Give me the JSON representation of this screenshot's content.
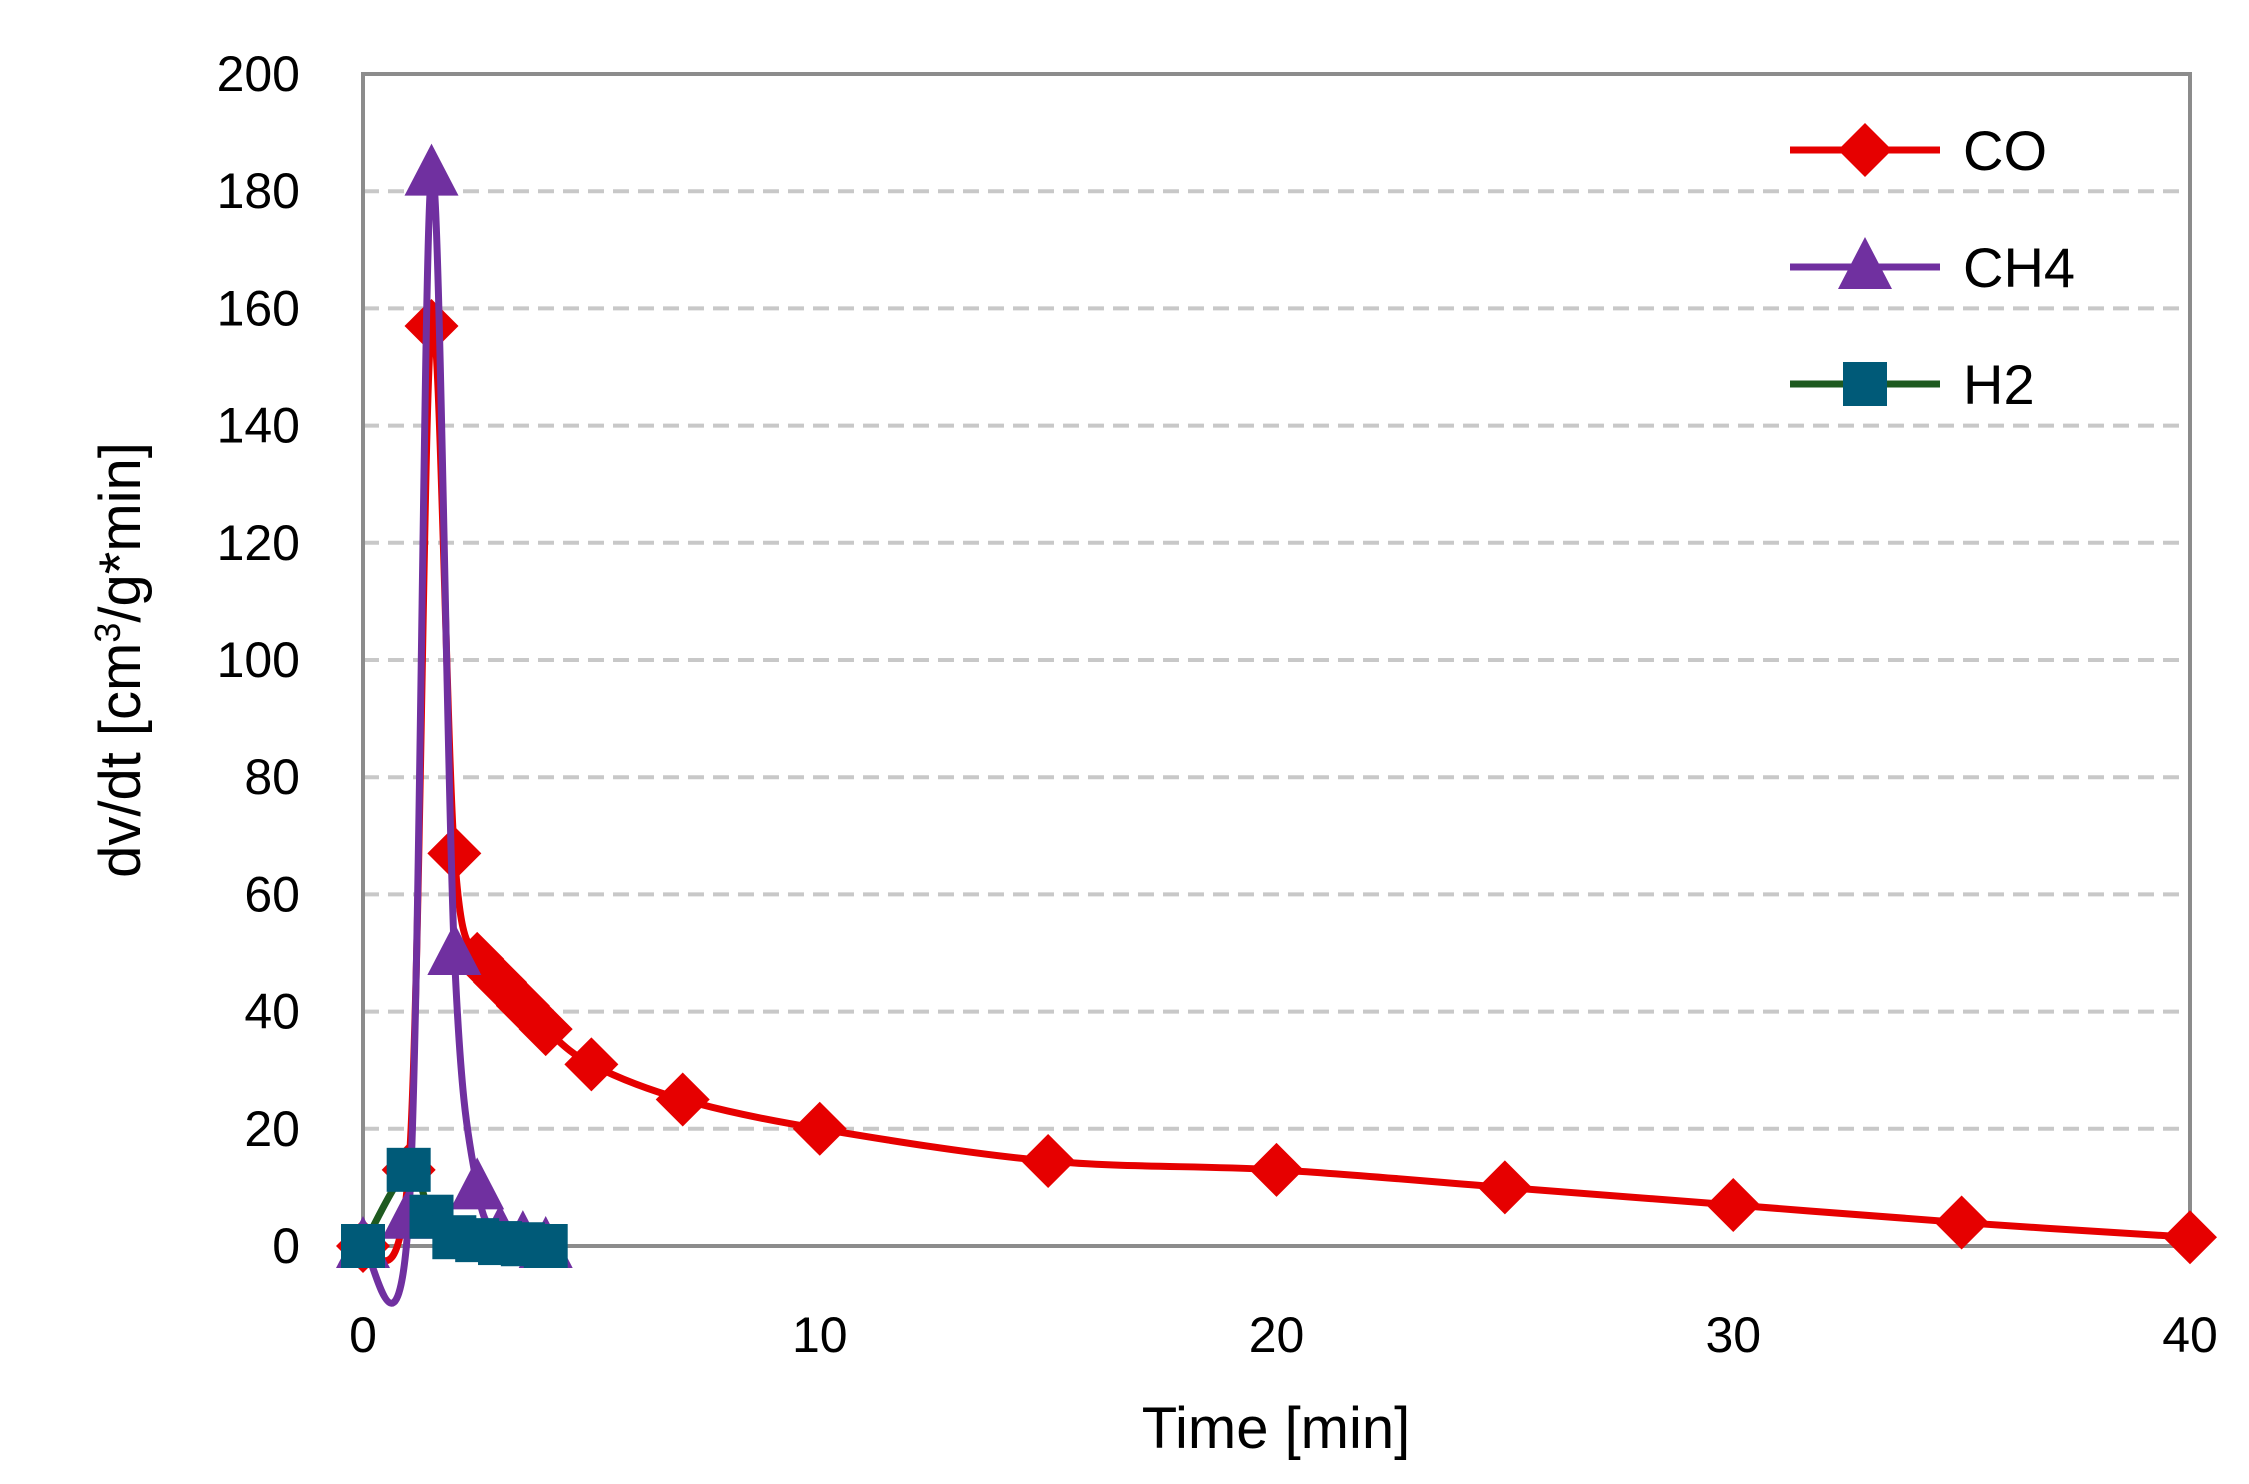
{
  "chart_data": {
    "type": "line",
    "title": "",
    "xlabel": "Time [min]",
    "ylabel_main": "dv/dt [cm",
    "ylabel_sup": "3",
    "ylabel_tail": "/g*min]",
    "xlim": [
      0,
      40
    ],
    "ylim": [
      0,
      200
    ],
    "xticks": [
      0,
      10,
      20,
      30,
      40
    ],
    "yticks": [
      0,
      20,
      40,
      60,
      80,
      100,
      120,
      140,
      160,
      180,
      200
    ],
    "grid": "horizontal dashed",
    "legend_position": "top-right",
    "series": [
      {
        "name": "CO",
        "color": "#e60000",
        "marker": "diamond",
        "x": [
          0,
          1,
          1.5,
          2,
          2.5,
          3,
          3.5,
          4,
          5,
          7,
          10,
          15,
          20,
          25,
          30,
          35,
          40
        ],
        "y": [
          0,
          13,
          157,
          67,
          49,
          45,
          41,
          37,
          31,
          25,
          20,
          14.5,
          13,
          10,
          7,
          4,
          1.5
        ]
      },
      {
        "name": "CH4",
        "color": "#7030a0",
        "marker": "triangle",
        "x": [
          0,
          1,
          1.5,
          2,
          2.5,
          3,
          3.5,
          4
        ],
        "y": [
          0,
          5,
          183,
          50,
          10,
          2,
          1,
          0
        ]
      },
      {
        "name": "H2",
        "color": "#005a78",
        "line_color": "#1e5a20",
        "marker": "square",
        "x": [
          0,
          1,
          1.5,
          2,
          2.5,
          3,
          3.5,
          4
        ],
        "y": [
          0,
          13,
          5,
          1.5,
          1,
          0.5,
          0.3,
          0
        ]
      }
    ]
  }
}
